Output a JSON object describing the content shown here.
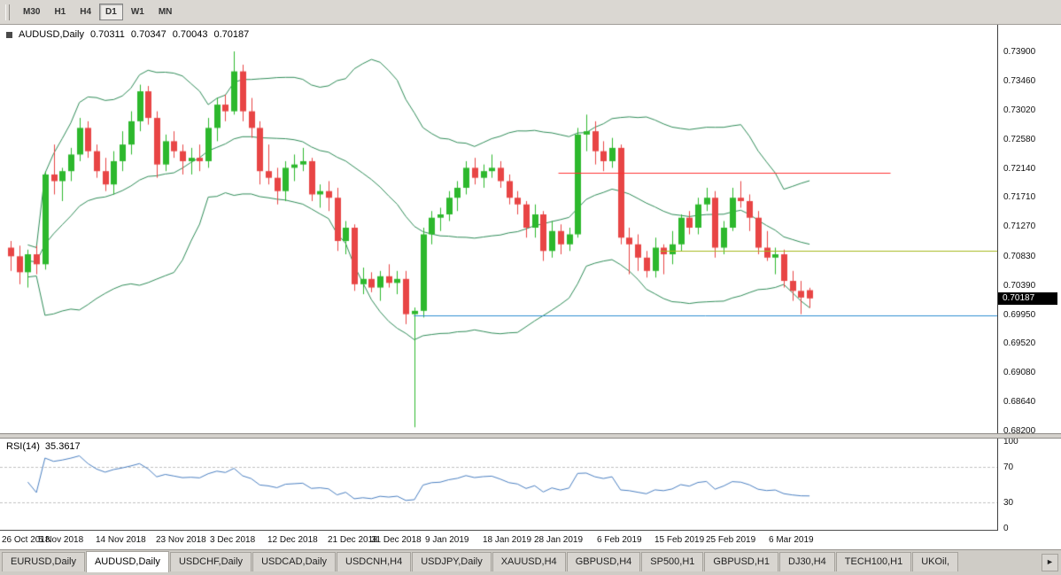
{
  "toolbar": {
    "timeframes": [
      {
        "label": "M30",
        "active": false
      },
      {
        "label": "H1",
        "active": false
      },
      {
        "label": "H4",
        "active": false
      },
      {
        "label": "D1",
        "active": true
      },
      {
        "label": "W1",
        "active": false
      },
      {
        "label": "MN",
        "active": false
      }
    ]
  },
  "chart": {
    "title": {
      "symbol": "AUDUSD,Daily",
      "open": "0.70311",
      "high": "0.70347",
      "low": "0.70043",
      "close": "0.70187"
    },
    "price_axis": {
      "labels": [
        "0.73900",
        "0.73460",
        "0.73020",
        "0.72580",
        "0.72140",
        "0.71710",
        "0.71270",
        "0.70830",
        "0.70390",
        "0.69950",
        "0.69520",
        "0.69080",
        "0.68640",
        "0.68200"
      ],
      "current_price": "0.70187"
    },
    "date_axis": {
      "labels": [
        {
          "text": "26 Oct 2018",
          "bar": 0
        },
        {
          "text": "5 Nov 2018",
          "bar": 6
        },
        {
          "text": "14 Nov 2018",
          "bar": 13
        },
        {
          "text": "23 Nov 2018",
          "bar": 20
        },
        {
          "text": "3 Dec 2018",
          "bar": 26
        },
        {
          "text": "12 Dec 2018",
          "bar": 33
        },
        {
          "text": "21 Dec 2018",
          "bar": 40
        },
        {
          "text": "31 Dec 2018",
          "bar": 45
        },
        {
          "text": "9 Jan 2019",
          "bar": 51
        },
        {
          "text": "18 Jan 2019",
          "bar": 58
        },
        {
          "text": "28 Jan 2019",
          "bar": 64
        },
        {
          "text": "6 Feb 2019",
          "bar": 71
        },
        {
          "text": "15 Feb 2019",
          "bar": 78
        },
        {
          "text": "25 Feb 2019",
          "bar": 84
        },
        {
          "text": "6 Mar 2019",
          "bar": 91
        }
      ]
    }
  },
  "rsi": {
    "label": "RSI(14)",
    "value": "35.3617",
    "axis_labels": [
      "100",
      "70",
      "30",
      "0"
    ],
    "levels": [
      70,
      30
    ]
  },
  "tabs": [
    {
      "label": "EURUSD,Daily",
      "active": false
    },
    {
      "label": "AUDUSD,Daily",
      "active": true
    },
    {
      "label": "USDCHF,Daily",
      "active": false
    },
    {
      "label": "USDCAD,Daily",
      "active": false
    },
    {
      "label": "USDCNH,H4",
      "active": false
    },
    {
      "label": "USDJPY,Daily",
      "active": false
    },
    {
      "label": "XAUUSD,H4",
      "active": false
    },
    {
      "label": "GBPUSD,H4",
      "active": false
    },
    {
      "label": "SP500,H1",
      "active": false
    },
    {
      "label": "GBPUSD,H1",
      "active": false
    },
    {
      "label": "DJ30,H4",
      "active": false
    },
    {
      "label": "TECH100,H1",
      "active": false
    },
    {
      "label": "UKOil,",
      "active": false
    }
  ],
  "icons": {
    "scroll_right": "►"
  },
  "chart_data": {
    "type": "candlestick",
    "symbol": "AUDUSD",
    "timeframe": "Daily",
    "ylim": [
      0.682,
      0.739
    ],
    "colors": {
      "background": "#ffffff",
      "bull": "#2db82d",
      "bear": "#e84545"
    },
    "bollinger": {
      "period": 20,
      "deviation": 2,
      "color": "#2e8b57"
    },
    "rsi": {
      "period": 14,
      "value": 35.3617,
      "color": "#4a7fc1",
      "levels": [
        70,
        30
      ],
      "level_color": "#c0c0c0"
    },
    "hlines": [
      {
        "price": 0.7207,
        "color": "#ff3232",
        "x1_frac": 0.56,
        "x2_frac": 0.893
      },
      {
        "price": 0.709,
        "color": "#a6b81e",
        "x1_frac": 0.662,
        "x2_frac": 1.0
      },
      {
        "price": 0.6993,
        "color": "#2e8fd0",
        "x1_frac": 0.415,
        "x2_frac": 1.0
      }
    ],
    "ohlc": [
      [
        "2018-10-26",
        0.7095,
        0.7105,
        0.706,
        0.7082
      ],
      [
        "2018-10-29",
        0.7082,
        0.7098,
        0.704,
        0.7058
      ],
      [
        "2018-10-30",
        0.7058,
        0.7092,
        0.7035,
        0.7085
      ],
      [
        "2018-10-31",
        0.7085,
        0.7098,
        0.7055,
        0.707
      ],
      [
        "2018-11-01",
        0.707,
        0.721,
        0.7062,
        0.7205
      ],
      [
        "2018-11-02",
        0.7205,
        0.725,
        0.7175,
        0.7195
      ],
      [
        "2018-11-05",
        0.7195,
        0.7215,
        0.7165,
        0.721
      ],
      [
        "2018-11-06",
        0.721,
        0.7245,
        0.7195,
        0.7235
      ],
      [
        "2018-11-07",
        0.7235,
        0.729,
        0.7225,
        0.7275
      ],
      [
        "2018-11-08",
        0.7275,
        0.7285,
        0.723,
        0.724
      ],
      [
        "2018-11-09",
        0.724,
        0.725,
        0.72,
        0.721
      ],
      [
        "2018-11-12",
        0.721,
        0.723,
        0.718,
        0.719
      ],
      [
        "2018-11-13",
        0.719,
        0.724,
        0.7175,
        0.7225
      ],
      [
        "2018-11-14",
        0.7225,
        0.727,
        0.721,
        0.725
      ],
      [
        "2018-11-15",
        0.725,
        0.73,
        0.7235,
        0.7285
      ],
      [
        "2018-11-16",
        0.7285,
        0.734,
        0.727,
        0.733
      ],
      [
        "2018-11-19",
        0.733,
        0.7338,
        0.728,
        0.729
      ],
      [
        "2018-11-20",
        0.729,
        0.73,
        0.72,
        0.722
      ],
      [
        "2018-11-21",
        0.722,
        0.7265,
        0.721,
        0.7255
      ],
      [
        "2018-11-22",
        0.7255,
        0.727,
        0.723,
        0.724
      ],
      [
        "2018-11-23",
        0.724,
        0.725,
        0.7205,
        0.7225
      ],
      [
        "2018-11-26",
        0.7225,
        0.7245,
        0.7205,
        0.723
      ],
      [
        "2018-11-27",
        0.723,
        0.725,
        0.721,
        0.7225
      ],
      [
        "2018-11-28",
        0.7225,
        0.729,
        0.7215,
        0.7275
      ],
      [
        "2018-11-29",
        0.7275,
        0.732,
        0.7255,
        0.731
      ],
      [
        "2018-11-30",
        0.731,
        0.7325,
        0.7285,
        0.73
      ],
      [
        "2018-12-03",
        0.73,
        0.739,
        0.7295,
        0.736
      ],
      [
        "2018-12-04",
        0.736,
        0.737,
        0.7285,
        0.73
      ],
      [
        "2018-12-05",
        0.73,
        0.732,
        0.726,
        0.7275
      ],
      [
        "2018-12-06",
        0.7275,
        0.7285,
        0.719,
        0.721
      ],
      [
        "2018-12-07",
        0.721,
        0.725,
        0.719,
        0.72
      ],
      [
        "2018-12-10",
        0.72,
        0.7215,
        0.716,
        0.718
      ],
      [
        "2018-12-11",
        0.718,
        0.7225,
        0.7165,
        0.7215
      ],
      [
        "2018-12-12",
        0.7215,
        0.7235,
        0.7195,
        0.722
      ],
      [
        "2018-12-13",
        0.722,
        0.7245,
        0.721,
        0.7225
      ],
      [
        "2018-12-14",
        0.7225,
        0.723,
        0.7165,
        0.7175
      ],
      [
        "2018-12-17",
        0.7175,
        0.719,
        0.7155,
        0.718
      ],
      [
        "2018-12-18",
        0.718,
        0.7195,
        0.715,
        0.717
      ],
      [
        "2018-12-19",
        0.717,
        0.7185,
        0.709,
        0.7105
      ],
      [
        "2018-12-20",
        0.7105,
        0.7135,
        0.7085,
        0.7125
      ],
      [
        "2018-12-21",
        0.7125,
        0.713,
        0.703,
        0.704
      ],
      [
        "2018-12-24",
        0.704,
        0.7065,
        0.7025,
        0.7048
      ],
      [
        "2018-12-26",
        0.7048,
        0.7058,
        0.7028,
        0.7035
      ],
      [
        "2018-12-27",
        0.7035,
        0.706,
        0.7015,
        0.7052
      ],
      [
        "2018-12-28",
        0.7052,
        0.707,
        0.7035,
        0.7042
      ],
      [
        "2018-12-31",
        0.7042,
        0.706,
        0.7025,
        0.7048
      ],
      [
        "2019-01-02",
        0.7048,
        0.706,
        0.698,
        0.6995
      ],
      [
        "2019-01-03",
        0.6995,
        0.7005,
        0.6825,
        0.7
      ],
      [
        "2019-01-04",
        0.7,
        0.7125,
        0.699,
        0.7115
      ],
      [
        "2019-01-07",
        0.7115,
        0.715,
        0.71,
        0.714
      ],
      [
        "2019-01-08",
        0.714,
        0.7155,
        0.712,
        0.7145
      ],
      [
        "2019-01-09",
        0.7145,
        0.718,
        0.7135,
        0.717
      ],
      [
        "2019-01-10",
        0.717,
        0.7195,
        0.715,
        0.7185
      ],
      [
        "2019-01-11",
        0.7185,
        0.7225,
        0.7175,
        0.7215
      ],
      [
        "2019-01-14",
        0.7215,
        0.723,
        0.719,
        0.72
      ],
      [
        "2019-01-15",
        0.72,
        0.722,
        0.7185,
        0.721
      ],
      [
        "2019-01-16",
        0.721,
        0.7235,
        0.72,
        0.7215
      ],
      [
        "2019-01-17",
        0.7215,
        0.7225,
        0.7185,
        0.7195
      ],
      [
        "2019-01-18",
        0.7195,
        0.7205,
        0.716,
        0.717
      ],
      [
        "2019-01-21",
        0.717,
        0.718,
        0.7145,
        0.716
      ],
      [
        "2019-01-22",
        0.716,
        0.7165,
        0.711,
        0.7125
      ],
      [
        "2019-01-23",
        0.7125,
        0.716,
        0.711,
        0.7145
      ],
      [
        "2019-01-24",
        0.7145,
        0.715,
        0.7075,
        0.709
      ],
      [
        "2019-01-25",
        0.709,
        0.7135,
        0.708,
        0.712
      ],
      [
        "2019-01-28",
        0.712,
        0.713,
        0.7085,
        0.71
      ],
      [
        "2019-01-29",
        0.71,
        0.7125,
        0.709,
        0.7115
      ],
      [
        "2019-01-30",
        0.7115,
        0.7275,
        0.711,
        0.7265
      ],
      [
        "2019-01-31",
        0.7265,
        0.7295,
        0.724,
        0.727
      ],
      [
        "2019-02-01",
        0.727,
        0.7285,
        0.722,
        0.724
      ],
      [
        "2019-02-04",
        0.724,
        0.7255,
        0.721,
        0.7225
      ],
      [
        "2019-02-05",
        0.7225,
        0.726,
        0.7215,
        0.7245
      ],
      [
        "2019-02-06",
        0.7245,
        0.725,
        0.71,
        0.711
      ],
      [
        "2019-02-07",
        0.711,
        0.7125,
        0.7055,
        0.71
      ],
      [
        "2019-02-08",
        0.71,
        0.7115,
        0.706,
        0.708
      ],
      [
        "2019-02-11",
        0.708,
        0.709,
        0.705,
        0.706
      ],
      [
        "2019-02-12",
        0.706,
        0.711,
        0.705,
        0.7095
      ],
      [
        "2019-02-13",
        0.7095,
        0.71,
        0.7055,
        0.7085
      ],
      [
        "2019-02-14",
        0.7085,
        0.712,
        0.707,
        0.71
      ],
      [
        "2019-02-15",
        0.71,
        0.7145,
        0.709,
        0.714
      ],
      [
        "2019-02-18",
        0.714,
        0.715,
        0.7115,
        0.7125
      ],
      [
        "2019-02-19",
        0.7125,
        0.717,
        0.7115,
        0.716
      ],
      [
        "2019-02-20",
        0.716,
        0.7185,
        0.715,
        0.717
      ],
      [
        "2019-02-21",
        0.717,
        0.718,
        0.708,
        0.7095
      ],
      [
        "2019-02-22",
        0.7095,
        0.7135,
        0.7085,
        0.7125
      ],
      [
        "2019-02-25",
        0.7125,
        0.7185,
        0.712,
        0.717
      ],
      [
        "2019-02-26",
        0.717,
        0.7195,
        0.7155,
        0.7165
      ],
      [
        "2019-02-27",
        0.7165,
        0.7175,
        0.712,
        0.714
      ],
      [
        "2019-02-28",
        0.714,
        0.715,
        0.7085,
        0.7095
      ],
      [
        "2019-03-01",
        0.7095,
        0.712,
        0.7075,
        0.708
      ],
      [
        "2019-03-04",
        0.708,
        0.7095,
        0.7055,
        0.7085
      ],
      [
        "2019-03-05",
        0.7085,
        0.7092,
        0.7035,
        0.7045
      ],
      [
        "2019-03-06",
        0.7045,
        0.706,
        0.7015,
        0.703
      ],
      [
        "2019-03-07",
        0.703,
        0.7045,
        0.6995,
        0.702
      ],
      [
        "2019-03-08",
        0.70311,
        0.70347,
        0.70043,
        0.70187
      ]
    ]
  }
}
